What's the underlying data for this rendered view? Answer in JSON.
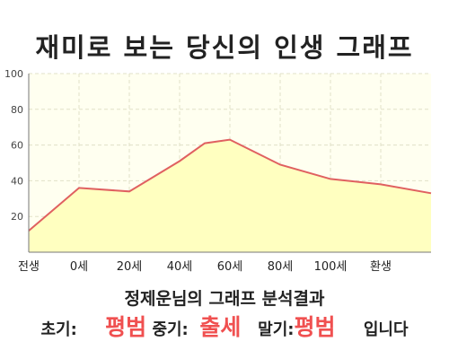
{
  "title": "재미로 보는 당신의 인생 그래프",
  "chart_data": {
    "type": "area",
    "x": [
      0,
      20,
      40,
      60,
      70,
      80,
      100,
      120,
      140,
      160
    ],
    "values": [
      12,
      36,
      34,
      51,
      61,
      63,
      49,
      41,
      38,
      33
    ],
    "x_ticks": [
      {
        "x": 0,
        "label": "전생"
      },
      {
        "x": 20,
        "label": "0세"
      },
      {
        "x": 40,
        "label": "20세"
      },
      {
        "x": 60,
        "label": "40세"
      },
      {
        "x": 80,
        "label": "60세"
      },
      {
        "x": 100,
        "label": "80세"
      },
      {
        "x": 120,
        "label": "100세"
      },
      {
        "x": 140,
        "label": "환생"
      }
    ],
    "y_ticks": [
      20,
      40,
      60,
      80,
      100
    ],
    "ylim": [
      0,
      100
    ],
    "xlim": [
      0,
      160
    ],
    "grid": true,
    "line_color": "#e06060",
    "fill_color": "#ffffc0",
    "plot_background": "#fffff0"
  },
  "analysis": {
    "heading": "정제운님의 그래프 분석결과",
    "early_label": "초기:",
    "early_value": "평범",
    "middle_label": "중기:",
    "middle_value": "출세",
    "late_label": "말기:",
    "late_value": "평범",
    "suffix": "입니다"
  },
  "colors": {
    "highlight": "#f05050"
  }
}
